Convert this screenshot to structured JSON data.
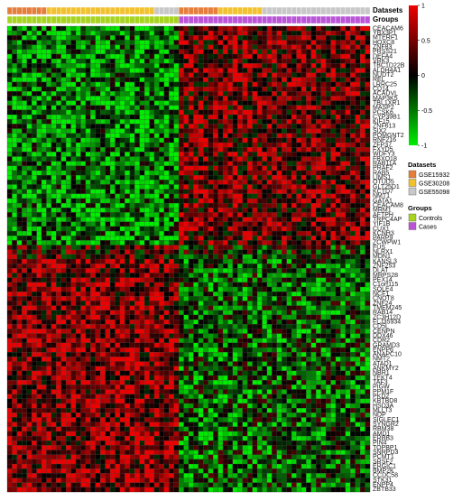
{
  "chart_data": {
    "type": "heatmap",
    "n_samples": 74,
    "colorscale": {
      "min": -1,
      "mid": 0,
      "max": 1,
      "low_color": "#00ee00",
      "mid_color": "#000000",
      "high_color": "#ee0000",
      "ticks": [
        "1",
        "0.5",
        "0",
        "-0.5",
        "-1"
      ]
    },
    "annotation_rows": [
      "Datasets",
      "Groups"
    ],
    "dataset_runs": [
      {
        "dataset": "GSE15932",
        "count": 8
      },
      {
        "dataset": "GSE30208",
        "count": 22
      },
      {
        "dataset": "GSE55098",
        "count": 5
      },
      {
        "dataset": "GSE15932",
        "count": 8
      },
      {
        "dataset": "GSE30208",
        "count": 9
      },
      {
        "dataset": "GSE55098",
        "count": 22
      }
    ],
    "group_runs": [
      {
        "group": "Controls",
        "count": 35
      },
      {
        "group": "Cases",
        "count": 39
      }
    ],
    "genes": [
      "CEACAM6",
      "YBX3P1",
      "MTERF1",
      "HOXC8",
      "ZNF83",
      "PRSS21",
      "DEFA4",
      "VRK3",
      "TBC1D22B",
      "ALDH4A1",
      "NUDT2",
      "REL",
      "LRRC25",
      "CD14",
      "ACADVL",
      "MAP3K5",
      "TBL1XR1",
      "MASP2",
      "PCSK6",
      "CYP39B1",
      "KIF15",
      "ZNF613",
      "SIX2",
      "POMGNT2",
      "RNF216",
      "ZFP37",
      "FXYD5",
      "WDFY3",
      "FBXO18",
      "RAB11A",
      "PRAF2",
      "RAB5",
      "LIMS1",
      "OTUD5",
      "GLT25D1",
      "KCTD7",
      "NMT1",
      "GATA1",
      "CEACAM8",
      "MRM1",
      "AFTPH",
      "TRPC4AP",
      "YIF1B",
      "CUX1",
      "KCNH3",
      "PARP9",
      "ZCWPW1",
      "FUS",
      "NLRX1",
      "MDN1",
      "KANSL3",
      "ZNF253",
      "DLAT",
      "MRPS28",
      "PEX14",
      "C1orf115",
      "SOLE4",
      "NCF1",
      "CNOT8",
      "ZNF24",
      "TMEM245",
      "RAB14",
      "ZC3H12D",
      "FLJ35934",
      "CD5L",
      "CENPN",
      "DDX46",
      "CDR2",
      "GRAMD3",
      "ENPP6",
      "ANAPC10",
      "NMT2",
      "ATAD1",
      "ANKMY2",
      "NBR1",
      "TEKT4",
      "TAF3",
      "PIGW",
      "PPM1F",
      "PKD2",
      "KBTBD8",
      "HSD3A",
      "MLLT3",
      "NDP",
      "SIGLEC1",
      "SYNGR2",
      "RBM38",
      "AMD1",
      "ERBB3",
      "PIN4",
      "TOPBP1",
      "SNRPD3",
      "PCMT1",
      "SRSF2",
      "ERGIC1",
      "BMP2K",
      "CCDC58",
      "STK31",
      "ENPP4",
      "ZBTB33"
    ],
    "gene_patterns": [
      "G",
      "G",
      "G",
      "G",
      "G",
      "G",
      "G",
      "G",
      "G",
      "G",
      "G",
      "G",
      "G",
      "G",
      "G",
      "G",
      "G",
      "G",
      "G",
      "G",
      "G",
      "G",
      "G",
      "G",
      "G",
      "G",
      "G",
      "G",
      "G",
      "G",
      "G",
      "G",
      "G",
      "G",
      "G",
      "G",
      "G",
      "G",
      "G",
      "G",
      "G",
      "G",
      "G",
      "G",
      "G",
      "G",
      "G",
      "M",
      "M",
      "M",
      "R",
      "R",
      "R",
      "R",
      "R",
      "R",
      "R",
      "R",
      "R",
      "R",
      "R",
      "R",
      "R",
      "R",
      "R",
      "R",
      "R",
      "R",
      "R",
      "R",
      "R",
      "R",
      "R",
      "R",
      "R",
      "R",
      "R",
      "R",
      "R",
      "R",
      "R",
      "R",
      "R",
      "R",
      "R",
      "R",
      "R",
      "R",
      "R",
      "R",
      "R",
      "R",
      "R",
      "R",
      "R",
      "R",
      "R",
      "R",
      "R",
      "R"
    ],
    "legends": [
      {
        "title": "Datasets",
        "items": [
          {
            "label": "GSE15932",
            "color": "#e67e3b"
          },
          {
            "label": "GSE30208",
            "color": "#f2c12e"
          },
          {
            "label": "GSE55098",
            "color": "#c8c8c8"
          }
        ]
      },
      {
        "title": "Groups",
        "items": [
          {
            "label": "Controls",
            "color": "#a6d41f"
          },
          {
            "label": "Cases",
            "color": "#bb55d8"
          }
        ]
      }
    ]
  }
}
